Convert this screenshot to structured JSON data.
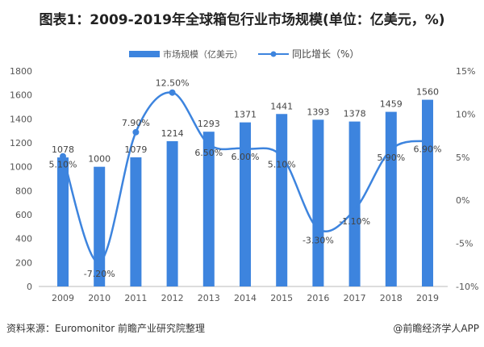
{
  "title": "图表1：2009-2019年全球箱包行业市场规模(单位：亿美元，%)",
  "chart_data": {
    "type": "bar+line",
    "categories": [
      "2009",
      "2010",
      "2011",
      "2012",
      "2013",
      "2014",
      "2015",
      "2016",
      "2017",
      "2018",
      "2019"
    ],
    "series": [
      {
        "name": "市场规模（亿美元）",
        "type": "bar",
        "axis": "left",
        "color": "#3d84de",
        "values": [
          1078,
          1000,
          1079,
          1214,
          1293,
          1371,
          1441,
          1393,
          1378,
          1459,
          1560
        ],
        "labels": [
          "1078",
          "1000",
          "1079",
          "1214",
          "1293",
          "1371",
          "1441",
          "1393",
          "1378",
          "1459",
          "1560"
        ]
      },
      {
        "name": "同比增长（%）",
        "type": "line",
        "smooth": true,
        "axis": "right",
        "color": "#3d84de",
        "values": [
          5.1,
          -7.2,
          7.9,
          12.5,
          6.5,
          6.0,
          5.1,
          -3.3,
          -1.1,
          5.9,
          6.9
        ],
        "labels": [
          "5.10%",
          "-7.20%",
          "7.90%",
          "12.50%",
          "6.50%",
          "6.00%",
          "5.10%",
          "-3.30%",
          "-1.10%",
          "5.90%",
          "6.90%"
        ]
      }
    ],
    "y_left": {
      "range": [
        0,
        1800
      ],
      "ticks": [
        "0",
        "200",
        "400",
        "600",
        "800",
        "1000",
        "1200",
        "1400",
        "1600",
        "1800"
      ]
    },
    "y_right": {
      "range": [
        -10,
        15
      ],
      "ticks": [
        "-10%",
        "-5%",
        "0%",
        "5%",
        "10%",
        "15%"
      ]
    },
    "legend_placement": "top",
    "grid": false
  },
  "footer": {
    "source_label": "资料来源：",
    "source": "Euromonitor 前瞻产业研究院整理",
    "brand": "@前瞻经济学人APP"
  }
}
